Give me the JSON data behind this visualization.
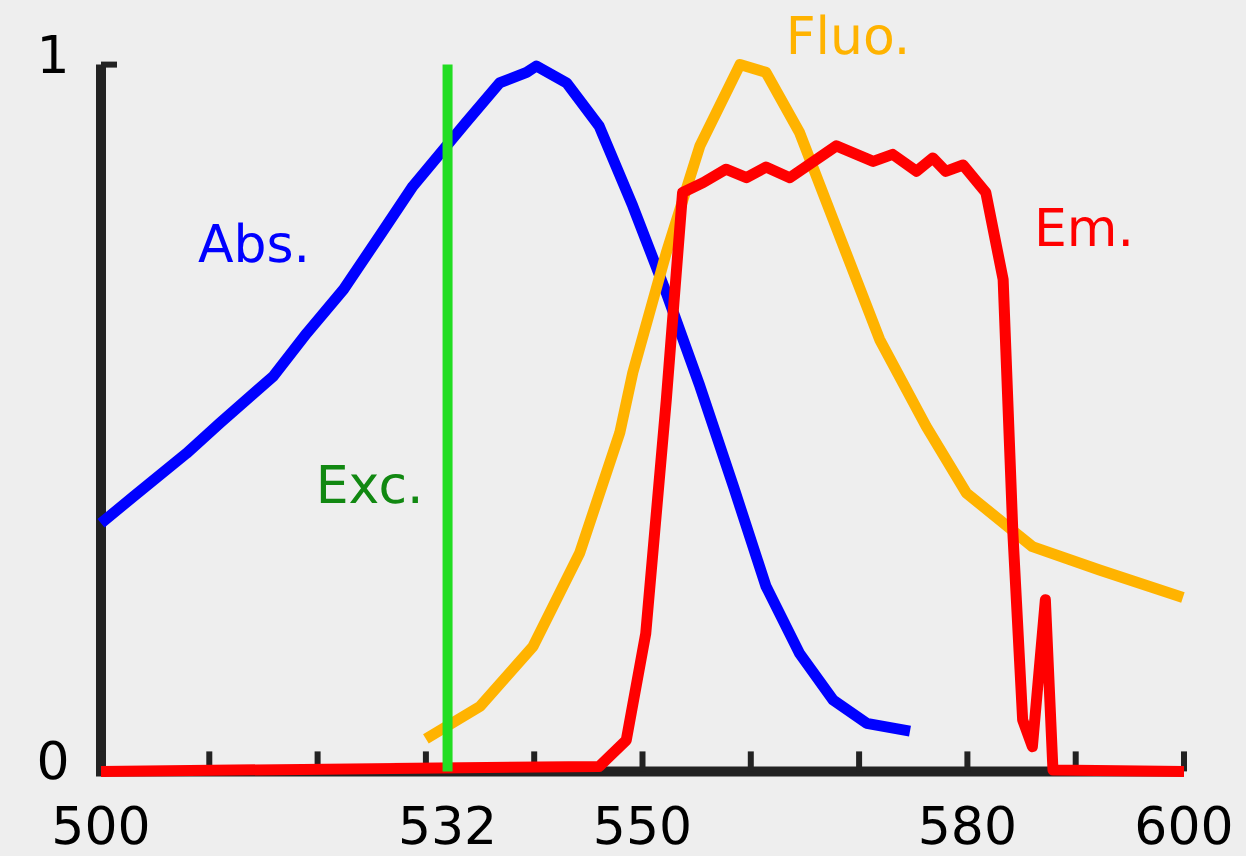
{
  "chart_data": {
    "type": "line",
    "xlim": [
      500,
      600
    ],
    "ylim": [
      0,
      1
    ],
    "xticks": [
      500,
      {
        "value": 510,
        "label": null
      },
      {
        "value": 520,
        "label": null
      },
      {
        "value": 530,
        "label": null
      },
      532,
      {
        "value": 540,
        "label": null
      },
      550,
      {
        "value": 560,
        "label": null
      },
      {
        "value": 570,
        "label": null
      },
      580,
      {
        "value": 590,
        "label": null
      },
      600
    ],
    "yticks": [
      0,
      1
    ],
    "series": [
      {
        "name": "Abs.",
        "color": "#0000ff",
        "x": [
          500,
          503,
          507.9,
          511,
          515.9,
          519,
          522.4,
          525.7,
          528.8,
          533.7,
          536.8,
          539.3,
          540.2,
          543,
          546,
          549.1,
          552.2,
          555.3,
          558.4,
          561.4,
          564.5,
          567.6,
          570.7,
          574.7
        ],
        "values": [
          0.351,
          0.389,
          0.45,
          0.493,
          0.559,
          0.62,
          0.682,
          0.757,
          0.828,
          0.918,
          0.974,
          0.989,
          0.998,
          0.974,
          0.913,
          0.8,
          0.677,
          0.545,
          0.403,
          0.262,
          0.167,
          0.101,
          0.068,
          0.057
        ]
      },
      {
        "name": "Fluo.",
        "color": "#ffb300",
        "x": [
          530,
          535,
          539.9,
          544.2,
          547.9,
          549.1,
          552.2,
          555.3,
          559,
          561.4,
          564.5,
          567.6,
          571.9,
          576.2,
          579.9,
          586,
          592.2,
          599.9
        ],
        "values": [
          0.046,
          0.092,
          0.177,
          0.309,
          0.479,
          0.564,
          0.734,
          0.885,
          1.0,
          0.989,
          0.904,
          0.781,
          0.611,
          0.488,
          0.394,
          0.318,
          0.285,
          0.246
        ]
      },
      {
        "name": "Em.",
        "color": "#ff0000",
        "x": [
          500,
          546,
          548.5,
          550.3,
          552.2,
          553.7,
          555.6,
          557.7,
          559.6,
          561.4,
          563.6,
          567.9,
          571.3,
          573.1,
          575.3,
          576.8,
          578,
          579.6,
          581.7,
          583.3,
          584.2,
          585.1,
          586,
          587.2,
          587.9,
          600
        ],
        "values": [
          0,
          0.007,
          0.044,
          0.195,
          0.526,
          0.819,
          0.833,
          0.852,
          0.84,
          0.855,
          0.84,
          0.885,
          0.863,
          0.873,
          0.849,
          0.868,
          0.849,
          0.858,
          0.819,
          0.696,
          0.337,
          0.073,
          0.035,
          0.243,
          0.002,
          0
        ]
      }
    ],
    "ref_lines": [
      {
        "axis": "x",
        "value": 532,
        "label": "Exc.",
        "color": "#22dd22"
      }
    ]
  }
}
